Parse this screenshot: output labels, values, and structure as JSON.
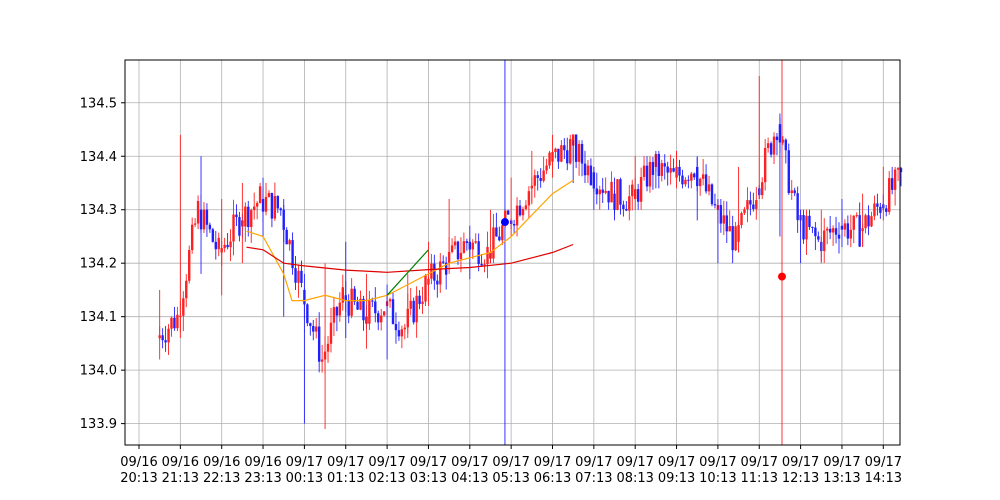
{
  "chart_data": {
    "type": "candlestick",
    "title": "",
    "xlabel": "",
    "ylabel": "",
    "ylim": [
      133.86,
      134.58
    ],
    "y_ticks": [
      "133.9",
      "134.0",
      "134.1",
      "134.2",
      "134.3",
      "134.4",
      "134.5"
    ],
    "x_ticks": [
      [
        "09/16",
        "20:13"
      ],
      [
        "09/16",
        "21:13"
      ],
      [
        "09/16",
        "22:13"
      ],
      [
        "09/16",
        "23:13"
      ],
      [
        "09/17",
        "00:13"
      ],
      [
        "09/17",
        "01:13"
      ],
      [
        "09/17",
        "02:13"
      ],
      [
        "09/17",
        "03:13"
      ],
      [
        "09/17",
        "04:13"
      ],
      [
        "09/17",
        "05:13"
      ],
      [
        "09/17",
        "06:13"
      ],
      [
        "09/17",
        "07:13"
      ],
      [
        "09/17",
        "08:13"
      ],
      [
        "09/17",
        "09:13"
      ],
      [
        "09/17",
        "10:13"
      ],
      [
        "09/17",
        "11:13"
      ],
      [
        "09/17",
        "12:13"
      ],
      [
        "09/17",
        "13:13"
      ],
      [
        "09/17",
        "14:13"
      ]
    ],
    "grid": true,
    "colors": {
      "up": "#ff2020",
      "down": "#2020ff",
      "ma_short": "#ffa500",
      "ma_long": "#e00000",
      "trend_line": "#008000",
      "marker_blue": "#0000ff",
      "marker_red": "#ff0000"
    },
    "candles_hourly": [
      {
        "t": 0.5,
        "o": 134.06,
        "h": 134.15,
        "l": 134.02,
        "c": 134.1
      },
      {
        "t": 1.0,
        "o": 134.1,
        "h": 134.44,
        "l": 134.06,
        "c": 134.3
      },
      {
        "t": 1.5,
        "o": 134.3,
        "h": 134.4,
        "l": 134.18,
        "c": 134.22
      },
      {
        "t": 2.0,
        "o": 134.22,
        "h": 134.32,
        "l": 134.14,
        "c": 134.28
      },
      {
        "t": 2.5,
        "o": 134.28,
        "h": 134.35,
        "l": 134.2,
        "c": 134.32
      },
      {
        "t": 3.0,
        "o": 134.32,
        "h": 134.36,
        "l": 134.25,
        "c": 134.3
      },
      {
        "t": 3.5,
        "o": 134.3,
        "h": 134.32,
        "l": 134.1,
        "c": 134.15
      },
      {
        "t": 4.0,
        "o": 134.15,
        "h": 134.18,
        "l": 133.9,
        "c": 134.02
      },
      {
        "t": 4.5,
        "o": 134.02,
        "h": 134.2,
        "l": 133.89,
        "c": 134.14
      },
      {
        "t": 5.0,
        "o": 134.14,
        "h": 134.24,
        "l": 134.06,
        "c": 134.1
      },
      {
        "t": 5.5,
        "o": 134.1,
        "h": 134.18,
        "l": 134.04,
        "c": 134.12
      },
      {
        "t": 6.0,
        "o": 134.12,
        "h": 134.16,
        "l": 134.02,
        "c": 134.08
      },
      {
        "t": 6.5,
        "o": 134.08,
        "h": 134.18,
        "l": 134.06,
        "c": 134.16
      },
      {
        "t": 7.0,
        "o": 134.16,
        "h": 134.24,
        "l": 134.12,
        "c": 134.2
      },
      {
        "t": 7.5,
        "o": 134.2,
        "h": 134.32,
        "l": 134.18,
        "c": 134.24
      },
      {
        "t": 8.0,
        "o": 134.24,
        "h": 134.27,
        "l": 134.17,
        "c": 134.22
      },
      {
        "t": 8.5,
        "o": 134.22,
        "h": 134.3,
        "l": 134.2,
        "c": 134.28
      },
      {
        "t": 9.0,
        "o": 134.28,
        "h": 134.36,
        "l": 134.25,
        "c": 134.34
      },
      {
        "t": 9.5,
        "o": 134.34,
        "h": 134.41,
        "l": 134.31,
        "c": 134.39
      },
      {
        "t": 10.0,
        "o": 134.39,
        "h": 134.44,
        "l": 134.36,
        "c": 134.42
      },
      {
        "t": 10.5,
        "o": 134.42,
        "h": 134.43,
        "l": 134.35,
        "c": 134.37
      },
      {
        "t": 11.0,
        "o": 134.37,
        "h": 134.38,
        "l": 134.3,
        "c": 134.33
      },
      {
        "t": 11.5,
        "o": 134.33,
        "h": 134.36,
        "l": 134.28,
        "c": 134.32
      },
      {
        "t": 12.0,
        "o": 134.32,
        "h": 134.4,
        "l": 134.3,
        "c": 134.38
      },
      {
        "t": 12.5,
        "o": 134.38,
        "h": 134.41,
        "l": 134.34,
        "c": 134.36
      },
      {
        "t": 13.0,
        "o": 134.36,
        "h": 134.41,
        "l": 134.34,
        "c": 134.38
      },
      {
        "t": 13.5,
        "o": 134.38,
        "h": 134.4,
        "l": 134.28,
        "c": 134.3
      },
      {
        "t": 14.0,
        "o": 134.3,
        "h": 134.32,
        "l": 134.2,
        "c": 134.24
      },
      {
        "t": 14.5,
        "o": 134.24,
        "h": 134.38,
        "l": 134.22,
        "c": 134.34
      },
      {
        "t": 15.0,
        "o": 134.34,
        "h": 134.55,
        "l": 134.32,
        "c": 134.46
      },
      {
        "t": 15.5,
        "o": 134.46,
        "h": 134.48,
        "l": 134.25,
        "c": 134.28
      },
      {
        "t": 16.0,
        "o": 134.28,
        "h": 134.3,
        "l": 134.2,
        "c": 134.24
      },
      {
        "t": 16.5,
        "o": 134.24,
        "h": 134.3,
        "l": 134.2,
        "c": 134.27
      },
      {
        "t": 17.0,
        "o": 134.27,
        "h": 134.32,
        "l": 134.23,
        "c": 134.26
      },
      {
        "t": 17.5,
        "o": 134.26,
        "h": 134.33,
        "l": 134.23,
        "c": 134.31
      },
      {
        "t": 18.0,
        "o": 134.31,
        "h": 134.38,
        "l": 134.28,
        "c": 134.36
      }
    ],
    "ma_short": {
      "x": [
        2.6,
        3.0,
        3.5,
        3.7,
        4.0,
        4.5,
        5.0,
        5.5,
        6.0,
        6.5,
        7.0,
        7.5,
        8.0,
        8.5,
        9.0,
        9.5,
        10.0,
        10.5
      ],
      "y": [
        134.26,
        134.25,
        134.18,
        134.13,
        134.13,
        134.14,
        134.13,
        134.13,
        134.14,
        134.16,
        134.18,
        134.2,
        134.21,
        134.22,
        134.25,
        134.29,
        134.33,
        134.355
      ]
    },
    "ma_long": {
      "x": [
        2.6,
        3.0,
        3.5,
        4.0,
        5.0,
        6.0,
        7.0,
        8.0,
        9.0,
        10.0,
        10.5
      ],
      "y": [
        134.23,
        134.225,
        134.2,
        134.195,
        134.187,
        134.183,
        134.188,
        134.192,
        134.2,
        134.22,
        134.235
      ]
    },
    "trend_line": {
      "x": [
        6.0,
        7.0
      ],
      "y": [
        134.14,
        134.225
      ]
    },
    "markers": [
      {
        "x": 8.85,
        "y": 134.277,
        "color": "blue"
      },
      {
        "x": 15.55,
        "y": 134.175,
        "color": "red"
      }
    ],
    "vlines": [
      {
        "x": 8.85,
        "color": "blue"
      },
      {
        "x": 15.55,
        "color": "red"
      }
    ]
  }
}
